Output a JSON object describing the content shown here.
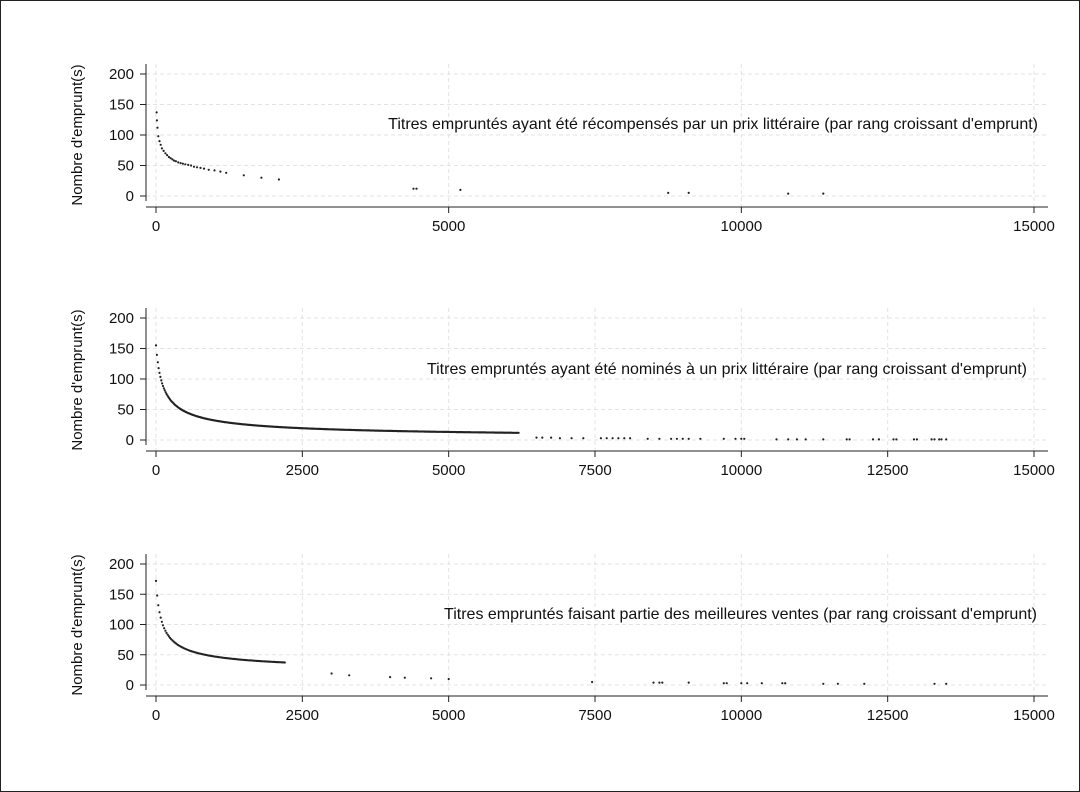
{
  "chart_data": [
    {
      "type": "scatter",
      "annotation": "Titres empruntés ayant été récompensés par un prix littéraire (par rang croissant d'emprunt)",
      "ylabel": "Nombre d'emprunt(s)",
      "xlabel": "",
      "xlim": [
        0,
        15000
      ],
      "ylim": [
        0,
        200
      ],
      "xticks": [
        0,
        5000,
        10000,
        15000
      ],
      "yticks": [
        0,
        50,
        100,
        150,
        200
      ],
      "grid": true,
      "points": [
        [
          10,
          137
        ],
        [
          15,
          124
        ],
        [
          25,
          112
        ],
        [
          40,
          98
        ],
        [
          60,
          90
        ],
        [
          80,
          84
        ],
        [
          100,
          78
        ],
        [
          130,
          74
        ],
        [
          160,
          70
        ],
        [
          190,
          67
        ],
        [
          220,
          64
        ],
        [
          250,
          62
        ],
        [
          280,
          60
        ],
        [
          310,
          58
        ],
        [
          340,
          57
        ],
        [
          380,
          55
        ],
        [
          420,
          54
        ],
        [
          460,
          53
        ],
        [
          500,
          52
        ],
        [
          550,
          51
        ],
        [
          600,
          50
        ],
        [
          650,
          48
        ],
        [
          700,
          47
        ],
        [
          760,
          46
        ],
        [
          820,
          45
        ],
        [
          900,
          43
        ],
        [
          1000,
          42
        ],
        [
          1100,
          40
        ],
        [
          1200,
          38
        ],
        [
          1500,
          34
        ],
        [
          1800,
          30
        ],
        [
          2100,
          27
        ],
        [
          4400,
          12
        ],
        [
          4450,
          12
        ],
        [
          5200,
          10
        ],
        [
          8750,
          5
        ],
        [
          9100,
          5
        ],
        [
          10800,
          4
        ],
        [
          11400,
          4
        ]
      ]
    },
    {
      "type": "scatter",
      "annotation": "Titres empruntés ayant été nominés à un prix littéraire (par rang croissant d'emprunt)",
      "ylabel": "Nombre d'emprunt(s)",
      "xlabel": "",
      "xlim": [
        0,
        15000
      ],
      "ylim": [
        0,
        200
      ],
      "xticks": [
        0,
        2500,
        5000,
        7500,
        10000,
        12500,
        15000
      ],
      "yticks": [
        0,
        50,
        100,
        150,
        200
      ],
      "grid": true,
      "curve": {
        "a": 155,
        "scale": 80,
        "exponent": 0.62,
        "floor": 1.5,
        "xmax": 6200,
        "step": 15
      },
      "points": [
        [
          6500,
          4
        ],
        [
          6600,
          4
        ],
        [
          6750,
          4
        ],
        [
          6900,
          3
        ],
        [
          7100,
          3
        ],
        [
          7300,
          3
        ],
        [
          7600,
          3
        ],
        [
          7700,
          3
        ],
        [
          7800,
          3
        ],
        [
          7900,
          3
        ],
        [
          8000,
          3
        ],
        [
          8100,
          3
        ],
        [
          8400,
          2
        ],
        [
          8600,
          2
        ],
        [
          8800,
          2
        ],
        [
          8900,
          2
        ],
        [
          9000,
          2
        ],
        [
          9100,
          2
        ],
        [
          9300,
          2
        ],
        [
          9700,
          2
        ],
        [
          9900,
          2
        ],
        [
          10000,
          2
        ],
        [
          10050,
          2
        ],
        [
          10600,
          1
        ],
        [
          10800,
          1
        ],
        [
          10950,
          1
        ],
        [
          11100,
          1
        ],
        [
          11400,
          1
        ],
        [
          11800,
          1
        ],
        [
          11850,
          1
        ],
        [
          12250,
          1
        ],
        [
          12350,
          1
        ],
        [
          12600,
          1
        ],
        [
          12650,
          1
        ],
        [
          12950,
          1
        ],
        [
          13000,
          1
        ],
        [
          13250,
          1
        ],
        [
          13300,
          1
        ],
        [
          13380,
          1
        ],
        [
          13420,
          1
        ],
        [
          13500,
          1
        ]
      ]
    },
    {
      "type": "scatter",
      "annotation": "Titres empruntés faisant partie des meilleures ventes (par rang croissant d'emprunt)",
      "ylabel": "Nombre d'emprunt(s)",
      "xlabel": "",
      "xlim": [
        0,
        15000
      ],
      "ylim": [
        0,
        200
      ],
      "xticks": [
        0,
        2500,
        5000,
        7500,
        10000,
        12500,
        15000
      ],
      "yticks": [
        0,
        50,
        100,
        150,
        200
      ],
      "grid": true,
      "curve": {
        "a": 172,
        "scale": 60,
        "exponent": 0.6,
        "floor": 20,
        "xmax": 2200,
        "step": 20
      },
      "points": [
        [
          3000,
          19
        ],
        [
          3300,
          16
        ],
        [
          4000,
          13
        ],
        [
          4250,
          12
        ],
        [
          4700,
          11
        ],
        [
          5000,
          10
        ],
        [
          7450,
          5
        ],
        [
          8500,
          4
        ],
        [
          8600,
          4
        ],
        [
          8650,
          4
        ],
        [
          9100,
          4
        ],
        [
          9700,
          3
        ],
        [
          9750,
          3
        ],
        [
          10000,
          3
        ],
        [
          10100,
          3
        ],
        [
          10350,
          3
        ],
        [
          10700,
          3
        ],
        [
          10750,
          3
        ],
        [
          11400,
          2
        ],
        [
          11650,
          2
        ],
        [
          12100,
          2
        ],
        [
          13300,
          2
        ],
        [
          13500,
          2
        ]
      ]
    }
  ]
}
